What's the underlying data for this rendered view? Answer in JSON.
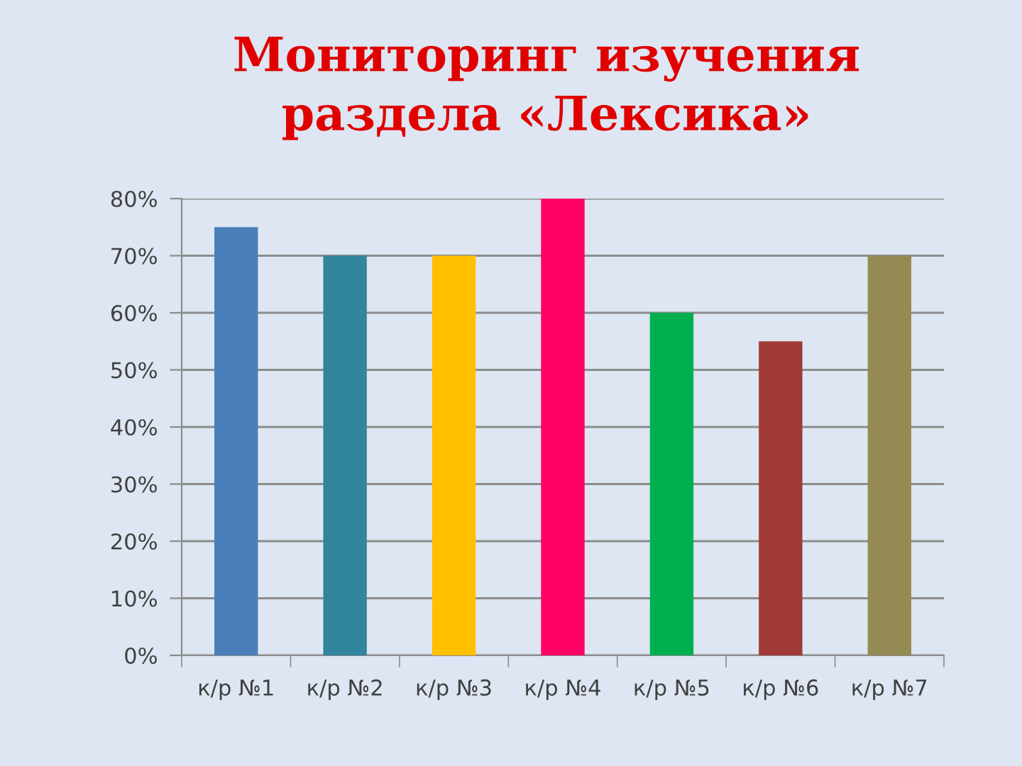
{
  "chart_data": {
    "type": "bar",
    "title": "Мониторинг изучения\nраздела «Лексика»",
    "categories": [
      "к/р №1",
      "к/р №2",
      "к/р №3",
      "к/р №4",
      "к/р №5",
      "к/р №6",
      "к/р №7"
    ],
    "values": [
      75,
      70,
      70,
      80,
      60,
      55,
      70
    ],
    "colors": [
      "#4a7ebb",
      "#31859c",
      "#ffc000",
      "#ff0066",
      "#00b050",
      "#a03a36",
      "#948a54"
    ],
    "ylim": [
      0,
      80
    ],
    "yticks": [
      {
        "value": 0,
        "label": "0%"
      },
      {
        "value": 10,
        "label": "10%"
      },
      {
        "value": 20,
        "label": "20%"
      },
      {
        "value": 30,
        "label": "30%"
      },
      {
        "value": 40,
        "label": "40%"
      },
      {
        "value": 50,
        "label": "50%"
      },
      {
        "value": 60,
        "label": "60%"
      },
      {
        "value": 70,
        "label": "70%"
      },
      {
        "value": 80,
        "label": "80%"
      }
    ],
    "grid": "y"
  }
}
